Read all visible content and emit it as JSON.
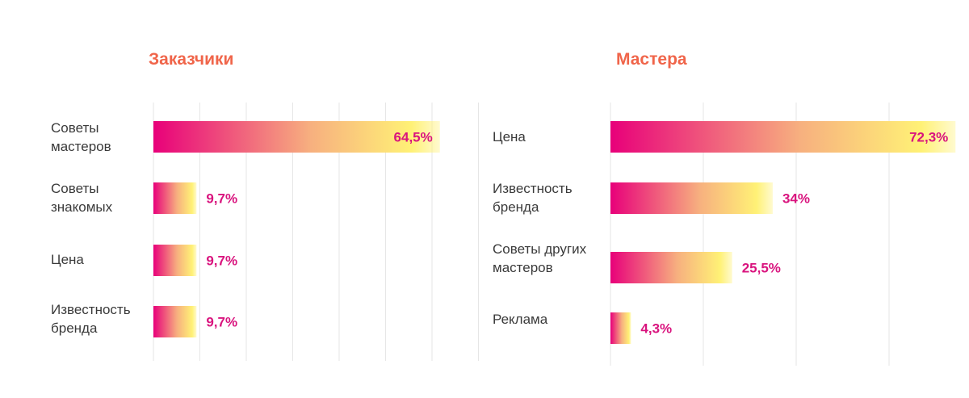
{
  "colors": {
    "title": "#f0654a",
    "value_label": "#d9147e",
    "gradient_start": "#e8007a",
    "gradient_mid": "#f7b07f",
    "gradient_yellow": "#fff176",
    "grid": "#e6e6e6"
  },
  "chart_data": [
    {
      "type": "bar",
      "orientation": "horizontal",
      "title": "Заказчики",
      "categories": [
        "Советы\nмастеров",
        "Советы\nзнакомых",
        "Цена",
        "Известность\nбренда"
      ],
      "values": [
        64.5,
        9.7,
        9.7,
        9.7
      ],
      "value_labels": [
        "64,5%",
        "9,7%",
        "9,7%",
        "9,7%"
      ],
      "xlim": [
        0,
        70
      ],
      "grid": true,
      "legend": "none"
    },
    {
      "type": "bar",
      "orientation": "horizontal",
      "title": "Мастера",
      "categories": [
        "Цена",
        "Известность\nбренда",
        "Советы других\nмастеров",
        "Реклама"
      ],
      "values": [
        72.3,
        34,
        25.5,
        4.3
      ],
      "value_labels": [
        "72,3%",
        "34%",
        "25,5%",
        "4,3%"
      ],
      "xlim": [
        0,
        72.3
      ],
      "grid": true,
      "legend": "none"
    }
  ]
}
